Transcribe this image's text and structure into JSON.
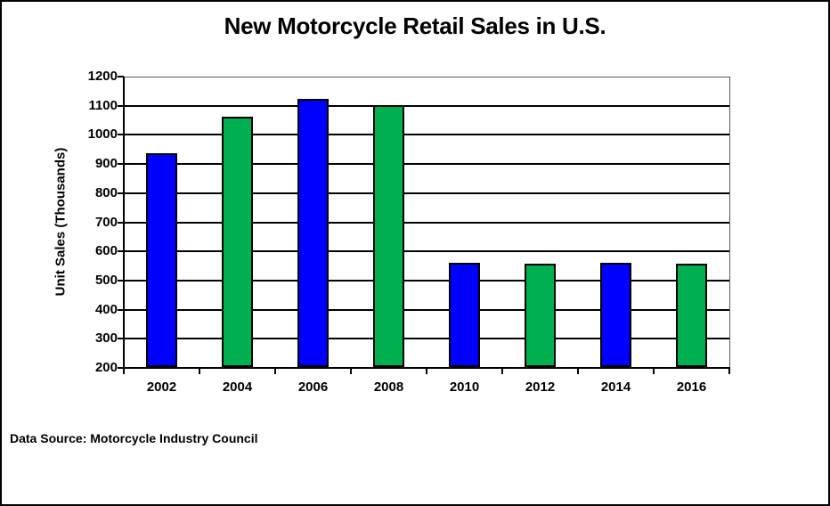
{
  "chart_data": {
    "type": "bar",
    "title": "New Motorcycle Retail Sales in U.S.",
    "xlabel": "",
    "ylabel": "Unit Sales (Thousands)",
    "categories": [
      "2002",
      "2004",
      "2006",
      "2008",
      "2010",
      "2012",
      "2014",
      "2016"
    ],
    "values": [
      937,
      1062,
      1123,
      1103,
      560,
      557,
      560,
      559
    ],
    "bar_colors": [
      "#0000ff",
      "#00b050",
      "#0000ff",
      "#00b050",
      "#0000ff",
      "#00b050",
      "#0000ff",
      "#00b050"
    ],
    "ylim": [
      200,
      1200
    ],
    "ytick_step": 100,
    "grid": true,
    "legend_position": "none",
    "source_note": "Data Source: Motorcycle Industry Council"
  },
  "colors": {
    "bar_blue": "#0000ff",
    "bar_green": "#00b050",
    "gridline": "#000000",
    "axis": "#000000",
    "plot_border": "#595959",
    "background": "#ffffff",
    "text": "#000000"
  }
}
